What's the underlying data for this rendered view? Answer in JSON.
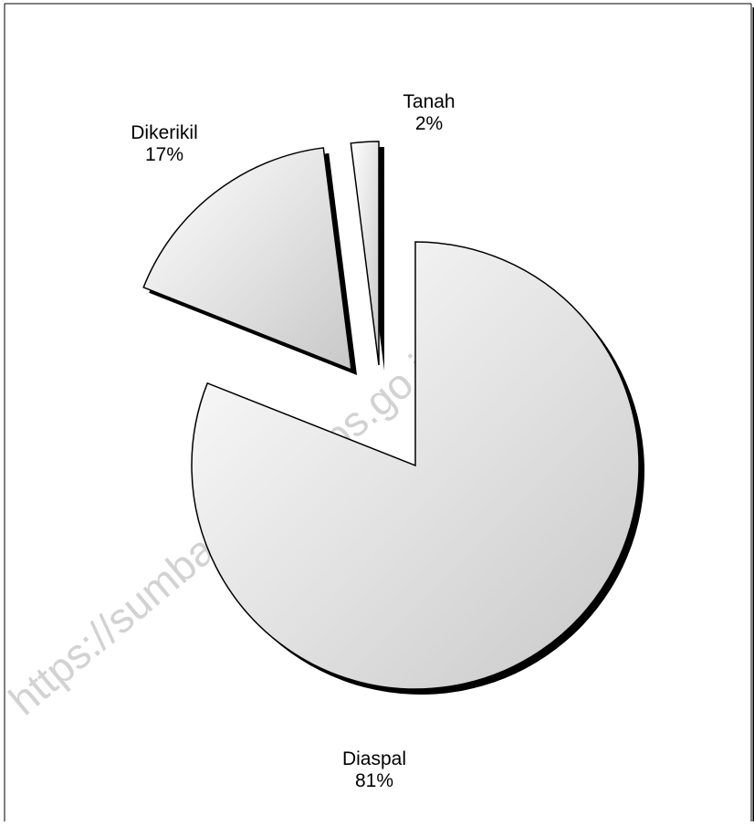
{
  "chart_data": {
    "type": "pie",
    "slices": [
      {
        "name": "Diaspal",
        "value_label": "81%",
        "value": 81
      },
      {
        "name": "Dikerikil",
        "value_label": "17%",
        "value": 17
      },
      {
        "name": "Tanah",
        "value_label": "2%",
        "value": 2
      }
    ],
    "exploded": true,
    "legend": "none",
    "watermark": "https://sumbawakab.bps.go.id"
  },
  "colors": {
    "slice_light": "#ffffff",
    "slice_dark": "#c8c8c8",
    "shadow": "#000000",
    "outline": "#000000",
    "frame": "#000000",
    "watermark": "#c4c4c4"
  }
}
